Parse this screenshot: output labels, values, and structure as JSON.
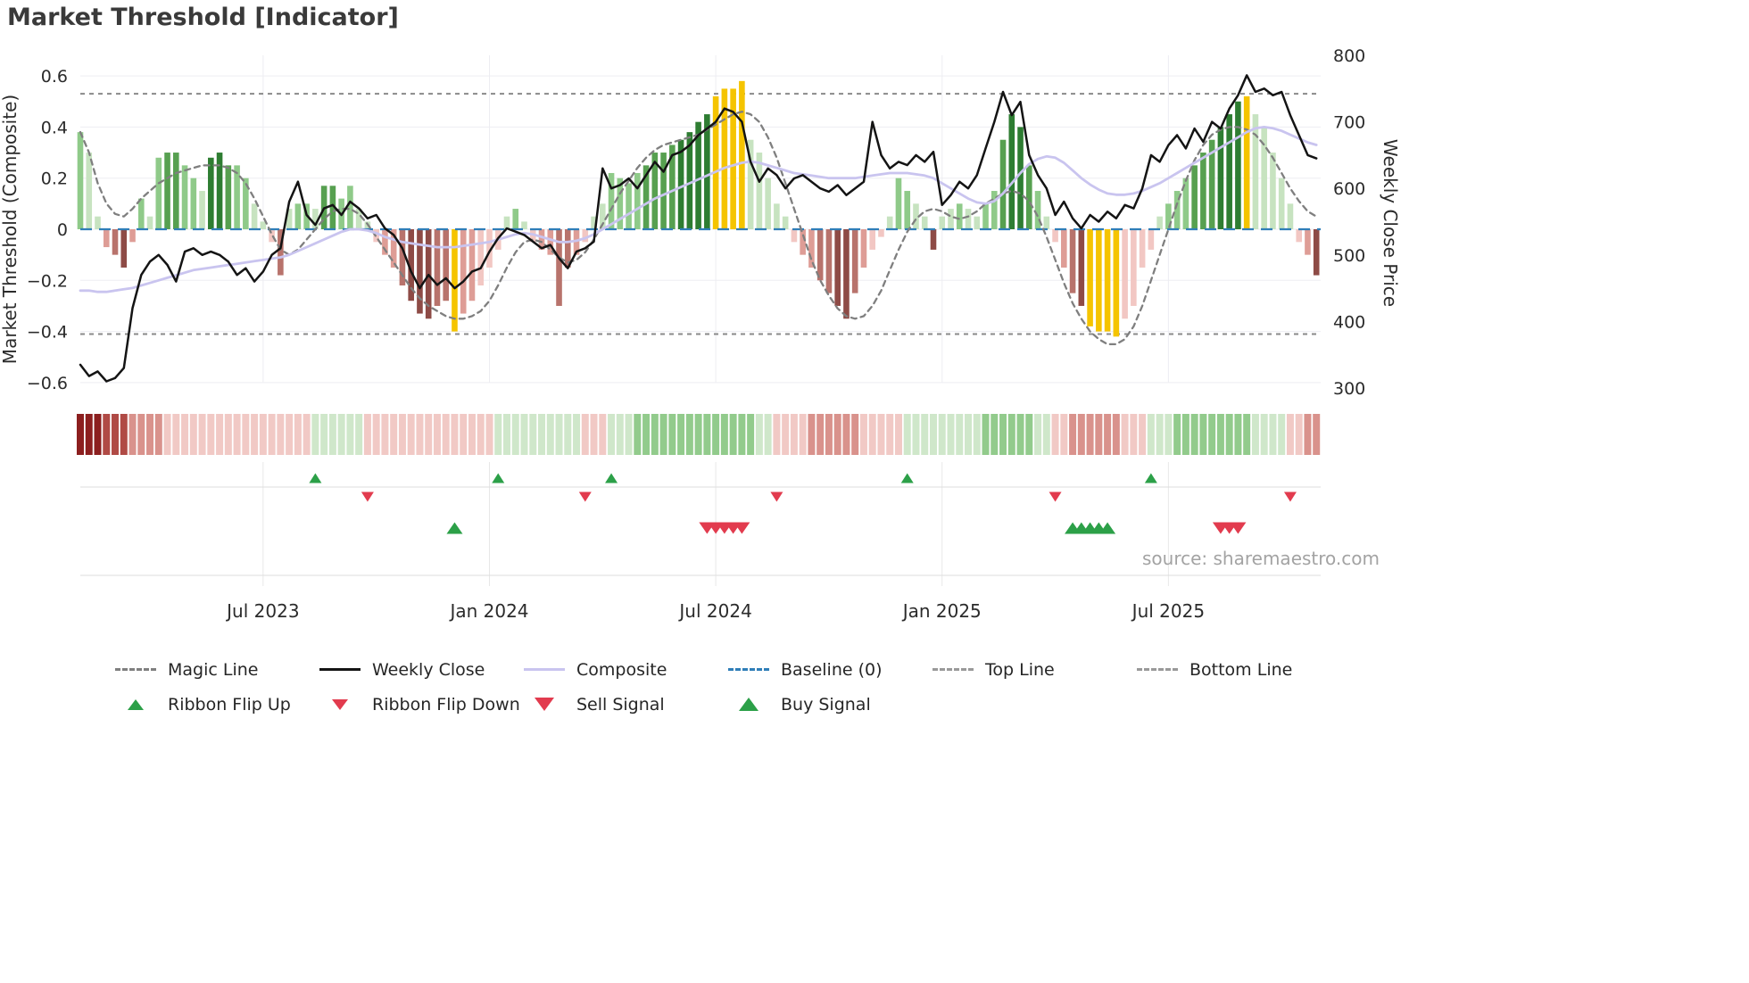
{
  "title": "Market Threshold [Indicator]",
  "source_text": "source: sharemaestro.com",
  "colors": {
    "bars": {
      "g1": "#c7e3c0",
      "g2": "#8fca89",
      "g3": "#57a050",
      "g4": "#2e7d32",
      "r1": "#f2c7c3",
      "r2": "#de9d96",
      "r3": "#b8736c",
      "r4": "#8e4b46",
      "y": "#f5c400"
    },
    "ribbon": {
      "-4": "#8c1f1f",
      "-3": "#b04a45",
      "-2": "#d9928c",
      "-1": "#f1c9c5",
      "1": "#cfe7ca",
      "2": "#92cb8c"
    },
    "signal_green": "#2ca048",
    "signal_red": "#e23b4e",
    "grid": "#ededf2",
    "panel_line": "#dedede"
  },
  "chart_data": {
    "type": "bar",
    "title": "Market Threshold [Indicator]",
    "x_ticks": [
      {
        "week": 21,
        "label": "Jul 2023"
      },
      {
        "week": 47,
        "label": "Jan 2024"
      },
      {
        "week": 73,
        "label": "Jul 2024"
      },
      {
        "week": 99,
        "label": "Jan 2025"
      },
      {
        "week": 125,
        "label": "Jul 2025"
      }
    ],
    "axes": {
      "left": {
        "title": "Market Threshold (Composite)",
        "ylim": [
          -0.6,
          0.6
        ],
        "ticks": [
          {
            "v": 0.6,
            "label": "0.6"
          },
          {
            "v": 0.4,
            "label": "0.4"
          },
          {
            "v": 0.2,
            "label": "0.2"
          },
          {
            "v": 0,
            "label": "0"
          },
          {
            "v": -0.2,
            "label": "−0.2"
          },
          {
            "v": -0.4,
            "label": "−0.4"
          },
          {
            "v": -0.6,
            "label": "−0.6"
          }
        ]
      },
      "right": {
        "title": "Weekly Close Price",
        "ylim": [
          300,
          800
        ],
        "ticks": [
          {
            "v": 800,
            "label": "800"
          },
          {
            "v": 700,
            "label": "700"
          },
          {
            "v": 600,
            "label": "600"
          },
          {
            "v": 500,
            "label": "500"
          },
          {
            "v": 400,
            "label": "400"
          },
          {
            "v": 300,
            "label": "300"
          }
        ]
      }
    },
    "reference_lines": [
      {
        "name": "Top Line",
        "value": 0.53,
        "color": "#8a8a8a",
        "dash": "5 5",
        "width": 2,
        "layer": "under"
      },
      {
        "name": "Bottom Line",
        "value": -0.41,
        "color": "#8a8a8a",
        "dash": "5 5",
        "width": 2,
        "layer": "under"
      },
      {
        "name": "Baseline (0)",
        "value": 0,
        "color": "#2f7eb8",
        "dash": "13 8",
        "width": 2.2,
        "layer": "over"
      }
    ],
    "bars": {
      "name": "Market Threshold histogram",
      "values": [
        0.38,
        0.3,
        0.05,
        -0.07,
        -0.1,
        -0.15,
        -0.05,
        0.12,
        0.05,
        0.28,
        0.3,
        0.3,
        0.25,
        0.2,
        0.15,
        0.28,
        0.3,
        0.25,
        0.25,
        0.2,
        0.1,
        0.03,
        -0.05,
        -0.18,
        0.08,
        0.1,
        0.1,
        0.08,
        0.17,
        0.17,
        0.12,
        0.17,
        0.08,
        0.03,
        -0.05,
        -0.1,
        -0.15,
        -0.22,
        -0.28,
        -0.33,
        -0.35,
        -0.3,
        -0.28,
        -0.4,
        -0.33,
        -0.28,
        -0.22,
        -0.15,
        -0.08,
        0.05,
        0.08,
        0.03,
        -0.05,
        -0.08,
        -0.1,
        -0.3,
        -0.15,
        -0.1,
        -0.05,
        0.05,
        0.1,
        0.22,
        0.2,
        0.18,
        0.22,
        0.25,
        0.3,
        0.3,
        0.33,
        0.35,
        0.38,
        0.42,
        0.45,
        0.52,
        0.55,
        0.55,
        0.58,
        0.35,
        0.3,
        0.2,
        0.1,
        0.05,
        -0.05,
        -0.1,
        -0.15,
        -0.2,
        -0.25,
        -0.3,
        -0.35,
        -0.25,
        -0.15,
        -0.08,
        -0.03,
        0.05,
        0.2,
        0.15,
        0.1,
        0.05,
        -0.08,
        0.05,
        0.08,
        0.1,
        0.08,
        0.05,
        0.1,
        0.15,
        0.35,
        0.45,
        0.4,
        0.25,
        0.15,
        0.05,
        -0.05,
        -0.15,
        -0.25,
        -0.3,
        -0.38,
        -0.4,
        -0.4,
        -0.42,
        -0.35,
        -0.3,
        -0.15,
        -0.08,
        0.05,
        0.1,
        0.15,
        0.2,
        0.25,
        0.3,
        0.35,
        0.4,
        0.45,
        0.5,
        0.52,
        0.45,
        0.4,
        0.3,
        0.2,
        0.1,
        -0.05,
        -0.1,
        -0.18
      ],
      "shades": [
        "g2",
        "g1",
        "g1",
        "r2",
        "r3",
        "r4",
        "r2",
        "g2",
        "g1",
        "g2",
        "g3",
        "g3",
        "g2",
        "g2",
        "g1",
        "g4",
        "g4",
        "g3",
        "g2",
        "g2",
        "g1",
        "g1",
        "r1",
        "r3",
        "g1",
        "g2",
        "g2",
        "g1",
        "g3",
        "g3",
        "g2",
        "g2",
        "g1",
        "g1",
        "r1",
        "r2",
        "r2",
        "r3",
        "r4",
        "r4",
        "r4",
        "r3",
        "r3",
        "y",
        "r2",
        "r2",
        "r1",
        "r1",
        "r1",
        "g1",
        "g2",
        "g1",
        "r1",
        "r2",
        "r2",
        "r3",
        "r3",
        "r2",
        "r1",
        "g1",
        "g1",
        "g2",
        "g2",
        "g2",
        "g2",
        "g3",
        "g3",
        "g3",
        "g3",
        "g4",
        "g4",
        "g4",
        "g4",
        "y",
        "y",
        "y",
        "y",
        "g1",
        "g1",
        "g1",
        "g1",
        "g1",
        "r1",
        "r2",
        "r2",
        "r3",
        "r3",
        "r4",
        "r4",
        "r3",
        "r2",
        "r1",
        "r1",
        "g1",
        "g2",
        "g2",
        "g1",
        "g1",
        "r4",
        "g1",
        "g1",
        "g2",
        "g1",
        "g1",
        "g2",
        "g2",
        "g3",
        "g4",
        "g4",
        "g3",
        "g2",
        "g1",
        "r1",
        "r2",
        "r3",
        "r4",
        "y",
        "y",
        "y",
        "y",
        "r1",
        "r1",
        "r1",
        "r1",
        "g1",
        "g2",
        "g2",
        "g2",
        "g3",
        "g3",
        "g3",
        "g4",
        "g4",
        "g4",
        "y",
        "g1",
        "g1",
        "g1",
        "g1",
        "g1",
        "r1",
        "r2",
        "r4"
      ]
    },
    "series": [
      {
        "name": "Magic Line",
        "axis": "left",
        "color": "#7f7f7f",
        "dash": "6 5",
        "width": 2.3,
        "values": [
          0.38,
          0.3,
          0.18,
          0.1,
          0.06,
          0.05,
          0.08,
          0.12,
          0.15,
          0.18,
          0.2,
          0.22,
          0.23,
          0.24,
          0.25,
          0.25,
          0.25,
          0.24,
          0.22,
          0.18,
          0.12,
          0.05,
          -0.02,
          -0.08,
          -0.1,
          -0.08,
          -0.04,
          0,
          0.04,
          0.07,
          0.08,
          0.08,
          0.06,
          0.02,
          -0.03,
          -0.08,
          -0.13,
          -0.18,
          -0.23,
          -0.27,
          -0.3,
          -0.32,
          -0.34,
          -0.35,
          -0.35,
          -0.34,
          -0.32,
          -0.28,
          -0.22,
          -0.15,
          -0.09,
          -0.05,
          -0.04,
          -0.05,
          -0.08,
          -0.11,
          -0.13,
          -0.12,
          -0.09,
          -0.04,
          0.02,
          0.08,
          0.14,
          0.19,
          0.24,
          0.28,
          0.31,
          0.33,
          0.34,
          0.35,
          0.36,
          0.37,
          0.39,
          0.41,
          0.43,
          0.45,
          0.46,
          0.45,
          0.42,
          0.36,
          0.28,
          0.18,
          0.08,
          -0.02,
          -0.12,
          -0.2,
          -0.26,
          -0.31,
          -0.34,
          -0.35,
          -0.34,
          -0.3,
          -0.24,
          -0.16,
          -0.08,
          -0.01,
          0.04,
          0.07,
          0.08,
          0.07,
          0.05,
          0.04,
          0.05,
          0.07,
          0.1,
          0.12,
          0.14,
          0.15,
          0.14,
          0.11,
          0.05,
          -0.03,
          -0.12,
          -0.21,
          -0.29,
          -0.35,
          -0.4,
          -0.43,
          -0.45,
          -0.45,
          -0.43,
          -0.38,
          -0.3,
          -0.2,
          -0.1,
          0,
          0.1,
          0.19,
          0.27,
          0.33,
          0.37,
          0.39,
          0.4,
          0.4,
          0.39,
          0.37,
          0.33,
          0.28,
          0.22,
          0.16,
          0.11,
          0.07,
          0.05
        ]
      },
      {
        "name": "Composite",
        "axis": "left",
        "color": "#c9c4ef",
        "dash": "",
        "width": 2.8,
        "values": [
          -0.24,
          -0.24,
          -0.245,
          -0.245,
          -0.24,
          -0.235,
          -0.23,
          -0.22,
          -0.21,
          -0.2,
          -0.19,
          -0.18,
          -0.17,
          -0.16,
          -0.155,
          -0.15,
          -0.145,
          -0.14,
          -0.135,
          -0.13,
          -0.125,
          -0.12,
          -0.115,
          -0.11,
          -0.1,
          -0.085,
          -0.07,
          -0.055,
          -0.04,
          -0.025,
          -0.01,
          0,
          0,
          -0.005,
          -0.015,
          -0.03,
          -0.04,
          -0.05,
          -0.055,
          -0.06,
          -0.065,
          -0.07,
          -0.07,
          -0.07,
          -0.065,
          -0.06,
          -0.055,
          -0.05,
          -0.04,
          -0.03,
          -0.02,
          -0.015,
          -0.02,
          -0.03,
          -0.04,
          -0.05,
          -0.05,
          -0.045,
          -0.035,
          -0.02,
          0,
          0.02,
          0.04,
          0.06,
          0.08,
          0.1,
          0.12,
          0.135,
          0.15,
          0.165,
          0.18,
          0.195,
          0.21,
          0.225,
          0.24,
          0.25,
          0.26,
          0.265,
          0.26,
          0.25,
          0.24,
          0.23,
          0.22,
          0.215,
          0.21,
          0.205,
          0.2,
          0.2,
          0.2,
          0.2,
          0.205,
          0.21,
          0.215,
          0.22,
          0.22,
          0.22,
          0.215,
          0.21,
          0.2,
          0.18,
          0.16,
          0.14,
          0.12,
          0.105,
          0.1,
          0.11,
          0.14,
          0.18,
          0.22,
          0.255,
          0.275,
          0.285,
          0.28,
          0.26,
          0.23,
          0.2,
          0.175,
          0.155,
          0.14,
          0.135,
          0.135,
          0.14,
          0.15,
          0.165,
          0.18,
          0.2,
          0.22,
          0.24,
          0.26,
          0.28,
          0.3,
          0.32,
          0.34,
          0.36,
          0.38,
          0.395,
          0.4,
          0.395,
          0.385,
          0.37,
          0.355,
          0.34,
          0.33
        ]
      },
      {
        "name": "Weekly Close",
        "axis": "right",
        "color": "#141414",
        "dash": "",
        "width": 2.5,
        "values": [
          335,
          318,
          325,
          310,
          315,
          330,
          420,
          470,
          490,
          500,
          485,
          460,
          505,
          510,
          500,
          505,
          500,
          490,
          470,
          480,
          460,
          475,
          500,
          510,
          580,
          610,
          560,
          545,
          570,
          575,
          560,
          580,
          570,
          555,
          560,
          540,
          530,
          510,
          475,
          450,
          470,
          455,
          465,
          450,
          460,
          475,
          480,
          505,
          525,
          540,
          535,
          530,
          520,
          510,
          515,
          495,
          480,
          505,
          510,
          520,
          630,
          600,
          605,
          615,
          600,
          620,
          640,
          625,
          650,
          655,
          665,
          680,
          690,
          700,
          720,
          715,
          700,
          640,
          610,
          630,
          620,
          600,
          615,
          620,
          610,
          600,
          595,
          605,
          590,
          600,
          610,
          700,
          650,
          630,
          640,
          635,
          650,
          640,
          655,
          575,
          590,
          610,
          600,
          620,
          660,
          700,
          745,
          710,
          730,
          650,
          620,
          600,
          560,
          580,
          555,
          540,
          560,
          550,
          565,
          555,
          575,
          570,
          600,
          650,
          640,
          665,
          680,
          660,
          690,
          670,
          700,
          690,
          720,
          740,
          770,
          745,
          750,
          740,
          745,
          710,
          680,
          650,
          645
        ]
      }
    ],
    "ribbon": [
      -4,
      -4,
      -4,
      -3,
      -3,
      -3,
      -2,
      -2,
      -2,
      -2,
      -1,
      -1,
      -1,
      -1,
      -1,
      -1,
      -1,
      -1,
      -1,
      -1,
      -1,
      -1,
      -1,
      -1,
      -1,
      -1,
      -1,
      1,
      1,
      1,
      1,
      1,
      1,
      -1,
      -1,
      -1,
      -1,
      -1,
      -1,
      -1,
      -1,
      -1,
      -1,
      -1,
      -1,
      -1,
      -1,
      -1,
      1,
      1,
      1,
      1,
      1,
      1,
      1,
      1,
      1,
      1,
      -1,
      -1,
      -1,
      1,
      1,
      1,
      2,
      2,
      2,
      2,
      2,
      2,
      2,
      2,
      2,
      2,
      2,
      2,
      2,
      2,
      1,
      1,
      -1,
      -1,
      -1,
      -1,
      -2,
      -2,
      -2,
      -2,
      -2,
      -2,
      -1,
      -1,
      -1,
      -1,
      -1,
      1,
      1,
      1,
      1,
      1,
      1,
      1,
      1,
      1,
      2,
      2,
      2,
      2,
      2,
      2,
      1,
      1,
      -1,
      -1,
      -2,
      -2,
      -2,
      -2,
      -2,
      -2,
      -1,
      -1,
      -1,
      1,
      1,
      1,
      2,
      2,
      2,
      2,
      2,
      2,
      2,
      2,
      2,
      1,
      1,
      1,
      1,
      -1,
      -1,
      -2,
      -2
    ],
    "signals": {
      "ribbon_flip_up_weeks": [
        27,
        48,
        61,
        95,
        123
      ],
      "ribbon_flip_down_weeks": [
        33,
        58,
        80,
        112,
        139
      ],
      "buy_signal_weeks": [
        43,
        114,
        115,
        116,
        117,
        118
      ],
      "sell_signal_weeks": [
        72,
        73,
        74,
        75,
        76,
        131,
        132,
        133
      ]
    }
  },
  "legend": {
    "rows": [
      [
        {
          "label": "Magic Line",
          "marker": "dashed-line",
          "color": "#7f7f7f"
        },
        {
          "label": "Weekly Close",
          "marker": "solid-line",
          "color": "#141414"
        },
        {
          "label": "Composite",
          "marker": "solid-line",
          "color": "#c9c4ef"
        },
        {
          "label": "Baseline (0)",
          "marker": "dashed-line",
          "color": "#2f7eb8"
        },
        {
          "label": "Top Line",
          "marker": "dashed-line",
          "color": "#999999"
        },
        {
          "label": "Bottom Line",
          "marker": "dashed-line",
          "color": "#999999"
        }
      ],
      [
        {
          "label": "Ribbon Flip Up",
          "marker": "triangle-up",
          "color": "#2ca048"
        },
        {
          "label": "Ribbon Flip Down",
          "marker": "triangle-down",
          "color": "#e23b4e"
        },
        {
          "label": "Sell Signal",
          "marker": "triangle-down-large",
          "color": "#e23b4e"
        },
        {
          "label": "Buy Signal",
          "marker": "triangle-up-large",
          "color": "#2ca048"
        }
      ]
    ]
  }
}
